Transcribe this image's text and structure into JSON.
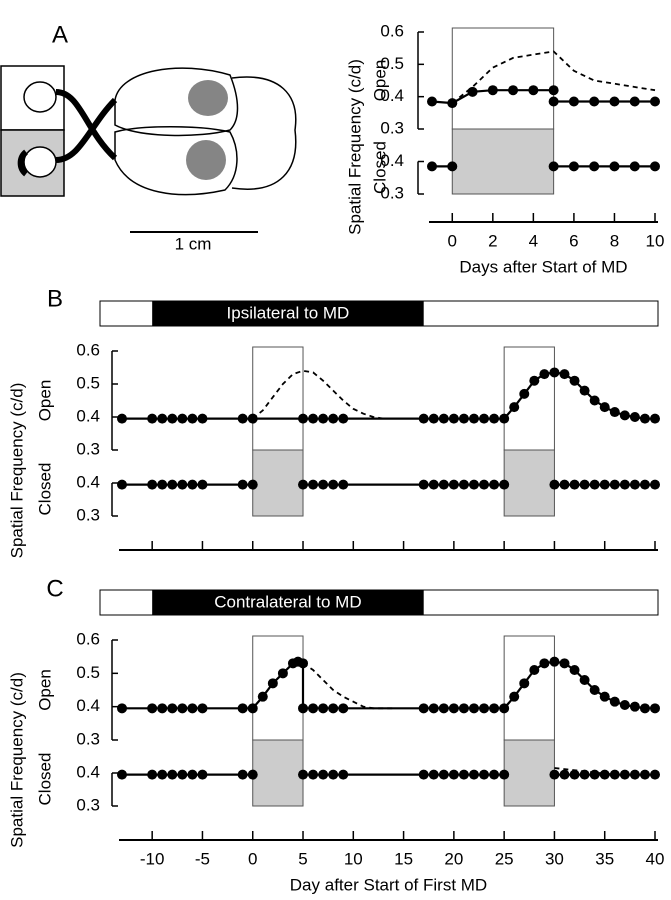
{
  "chart_data": [
    {
      "type": "line",
      "label": "A",
      "xlabel": "Days after Start of MD",
      "ylabel": "Spatial Frequency (c/d)",
      "open_label": "Open",
      "closed_label": "Closed",
      "scale_bar_label": "1 cm",
      "xlim": [
        -1,
        10
      ],
      "xticks": [
        0,
        2,
        4,
        6,
        8,
        10
      ],
      "xtick_labels": true,
      "open_ylim": [
        0.3,
        0.6
      ],
      "open_yticks": [
        0.3,
        0.4,
        0.5,
        0.6
      ],
      "closed_ylim": [
        0.3,
        0.5
      ],
      "closed_yticks": [
        0.3,
        0.4
      ],
      "md_periods": [
        [
          0,
          5
        ]
      ],
      "series": [
        {
          "panel": "open",
          "style": "solid",
          "markers": true,
          "color": "#000000",
          "x": [
            -1,
            0,
            1,
            2,
            3,
            4,
            5
          ],
          "values": [
            0.385,
            0.38,
            0.415,
            0.42,
            0.42,
            0.42,
            0.42
          ]
        },
        {
          "panel": "open",
          "style": "solid",
          "markers": true,
          "color": "#000000",
          "x": [
            5,
            6,
            7,
            8,
            9,
            10
          ],
          "values": [
            0.385,
            0.385,
            0.385,
            0.385,
            0.385,
            0.385
          ]
        },
        {
          "panel": "open",
          "style": "dashed",
          "markers": false,
          "color": "#000000",
          "x": [
            0,
            1,
            2,
            3,
            4,
            5,
            6,
            7,
            8,
            9,
            10
          ],
          "values": [
            0.38,
            0.43,
            0.49,
            0.52,
            0.53,
            0.54,
            0.48,
            0.45,
            0.44,
            0.43,
            0.42
          ]
        },
        {
          "panel": "closed",
          "style": "solid",
          "markers": true,
          "color": "#000000",
          "x": [
            -1,
            0
          ],
          "values": [
            0.385,
            0.385
          ]
        },
        {
          "panel": "closed",
          "style": "solid",
          "markers": true,
          "color": "#000000",
          "x": [
            5,
            6,
            7,
            8,
            9,
            10
          ],
          "values": [
            0.385,
            0.385,
            0.385,
            0.385,
            0.385,
            0.385
          ]
        }
      ]
    },
    {
      "type": "line",
      "label": "B",
      "ylabel": "Spatial Frequency (c/d)",
      "open_label": "Open",
      "closed_label": "Closed",
      "exposure_label": "Ipsilateral to MD",
      "exposure": [
        -10,
        17
      ],
      "xlim": [
        -13,
        40
      ],
      "xticks": [
        -10,
        -5,
        0,
        5,
        10,
        15,
        20,
        25,
        30,
        35,
        40
      ],
      "xtick_labels": false,
      "open_ylim": [
        0.3,
        0.6
      ],
      "open_yticks": [
        0.3,
        0.4,
        0.5,
        0.6
      ],
      "closed_ylim": [
        0.3,
        0.5
      ],
      "closed_yticks": [
        0.3,
        0.4
      ],
      "md_periods": [
        [
          0,
          5
        ],
        [
          25,
          30
        ]
      ],
      "series": [
        {
          "panel": "open",
          "style": "solid",
          "markers": true,
          "color": "#000000",
          "x": [
            -13,
            -10,
            -9,
            -8,
            -7,
            -6,
            -5,
            -1,
            0,
            5,
            6,
            7,
            8,
            9,
            17,
            18,
            19,
            20,
            21,
            22,
            23,
            24,
            25,
            26,
            27,
            28,
            29,
            30,
            31,
            32,
            33,
            34,
            35,
            36,
            37,
            38,
            39,
            40
          ],
          "values": [
            0.395,
            0.395,
            0.395,
            0.395,
            0.395,
            0.395,
            0.395,
            0.395,
            0.395,
            0.395,
            0.395,
            0.395,
            0.395,
            0.395,
            0.395,
            0.395,
            0.395,
            0.395,
            0.395,
            0.395,
            0.395,
            0.395,
            0.395,
            0.43,
            0.47,
            0.51,
            0.53,
            0.535,
            0.53,
            0.51,
            0.48,
            0.45,
            0.43,
            0.415,
            0.405,
            0.4,
            0.395,
            0.395
          ]
        },
        {
          "panel": "open",
          "style": "dashed",
          "markers": false,
          "color": "#000000",
          "x": [
            0,
            1,
            2,
            3,
            4,
            5,
            6,
            7,
            8,
            9,
            10,
            11,
            12,
            13,
            14
          ],
          "values": [
            0.395,
            0.42,
            0.46,
            0.5,
            0.53,
            0.54,
            0.535,
            0.51,
            0.48,
            0.45,
            0.425,
            0.41,
            0.4,
            0.395,
            0.395
          ]
        },
        {
          "panel": "closed",
          "style": "solid",
          "markers": true,
          "color": "#000000",
          "x": [
            -13,
            -10,
            -9,
            -8,
            -7,
            -6,
            -5,
            -1,
            0
          ],
          "values": [
            0.395,
            0.395,
            0.395,
            0.395,
            0.395,
            0.395,
            0.395,
            0.395,
            0.395
          ]
        },
        {
          "panel": "closed",
          "style": "solid",
          "markers": true,
          "color": "#000000",
          "x": [
            5,
            6,
            7,
            8,
            9,
            17,
            18,
            19,
            20,
            21,
            22,
            23,
            24,
            25
          ],
          "values": [
            0.395,
            0.395,
            0.395,
            0.395,
            0.395,
            0.395,
            0.395,
            0.395,
            0.395,
            0.395,
            0.395,
            0.395,
            0.395,
            0.395
          ]
        },
        {
          "panel": "closed",
          "style": "solid",
          "markers": true,
          "color": "#000000",
          "x": [
            30,
            31,
            32,
            33,
            34,
            35,
            36,
            37,
            38,
            39,
            40
          ],
          "values": [
            0.395,
            0.395,
            0.395,
            0.395,
            0.395,
            0.395,
            0.395,
            0.395,
            0.395,
            0.395,
            0.395
          ]
        }
      ]
    },
    {
      "type": "line",
      "label": "C",
      "xlabel": "Day after Start of First MD",
      "ylabel": "Spatial Frequency (c/d)",
      "open_label": "Open",
      "closed_label": "Closed",
      "exposure_label": "Contralateral to MD",
      "exposure": [
        -10,
        17
      ],
      "xlim": [
        -13,
        40
      ],
      "xticks": [
        -10,
        -5,
        0,
        5,
        10,
        15,
        20,
        25,
        30,
        35,
        40
      ],
      "xtick_labels": true,
      "open_ylim": [
        0.3,
        0.6
      ],
      "open_yticks": [
        0.3,
        0.4,
        0.5,
        0.6
      ],
      "closed_ylim": [
        0.3,
        0.5
      ],
      "closed_yticks": [
        0.3,
        0.4
      ],
      "md_periods": [
        [
          0,
          5
        ],
        [
          25,
          30
        ]
      ],
      "series": [
        {
          "panel": "open",
          "style": "solid",
          "markers": true,
          "color": "#000000",
          "x": [
            -13,
            -10,
            -9,
            -8,
            -7,
            -6,
            -5,
            -1,
            0,
            1,
            2,
            3,
            4,
            4.5,
            5,
            5,
            6,
            7,
            8,
            9,
            17,
            18,
            19,
            20,
            21,
            22,
            23,
            24,
            25,
            26,
            27,
            28,
            29,
            30,
            31,
            32,
            33,
            34,
            35,
            36,
            37,
            38,
            39,
            40
          ],
          "values": [
            0.395,
            0.395,
            0.395,
            0.395,
            0.395,
            0.395,
            0.395,
            0.395,
            0.395,
            0.43,
            0.47,
            0.5,
            0.53,
            0.535,
            0.53,
            0.395,
            0.395,
            0.395,
            0.395,
            0.395,
            0.395,
            0.395,
            0.395,
            0.395,
            0.395,
            0.395,
            0.395,
            0.395,
            0.395,
            0.43,
            0.47,
            0.51,
            0.53,
            0.535,
            0.53,
            0.51,
            0.48,
            0.45,
            0.43,
            0.415,
            0.405,
            0.4,
            0.395,
            0.395
          ]
        },
        {
          "panel": "open",
          "style": "dashed",
          "markers": false,
          "color": "#000000",
          "x": [
            5,
            6,
            7,
            8,
            9,
            10,
            11,
            12,
            13,
            14
          ],
          "values": [
            0.53,
            0.51,
            0.48,
            0.45,
            0.43,
            0.415,
            0.4,
            0.395,
            0.395,
            0.395
          ]
        },
        {
          "panel": "closed",
          "style": "solid",
          "markers": true,
          "color": "#000000",
          "x": [
            -13,
            -10,
            -9,
            -8,
            -7,
            -6,
            -5,
            -1,
            0
          ],
          "values": [
            0.395,
            0.395,
            0.395,
            0.395,
            0.395,
            0.395,
            0.395,
            0.395,
            0.395
          ]
        },
        {
          "panel": "closed",
          "style": "solid",
          "markers": true,
          "color": "#000000",
          "x": [
            5,
            6,
            7,
            8,
            9,
            17,
            18,
            19,
            20,
            21,
            22,
            23,
            24,
            25
          ],
          "values": [
            0.395,
            0.395,
            0.395,
            0.395,
            0.395,
            0.395,
            0.395,
            0.395,
            0.395,
            0.395,
            0.395,
            0.395,
            0.395,
            0.395
          ]
        },
        {
          "panel": "closed",
          "style": "solid",
          "markers": true,
          "color": "#000000",
          "x": [
            30,
            31,
            32,
            33,
            34,
            35,
            36,
            37,
            38,
            39,
            40
          ],
          "values": [
            0.395,
            0.395,
            0.395,
            0.395,
            0.395,
            0.395,
            0.395,
            0.395,
            0.395,
            0.395,
            0.395
          ]
        },
        {
          "panel": "closed",
          "style": "dashed",
          "markers": false,
          "color": "#000000",
          "x": [
            30,
            33,
            36
          ],
          "values": [
            0.415,
            0.405,
            0.395
          ]
        }
      ]
    }
  ]
}
